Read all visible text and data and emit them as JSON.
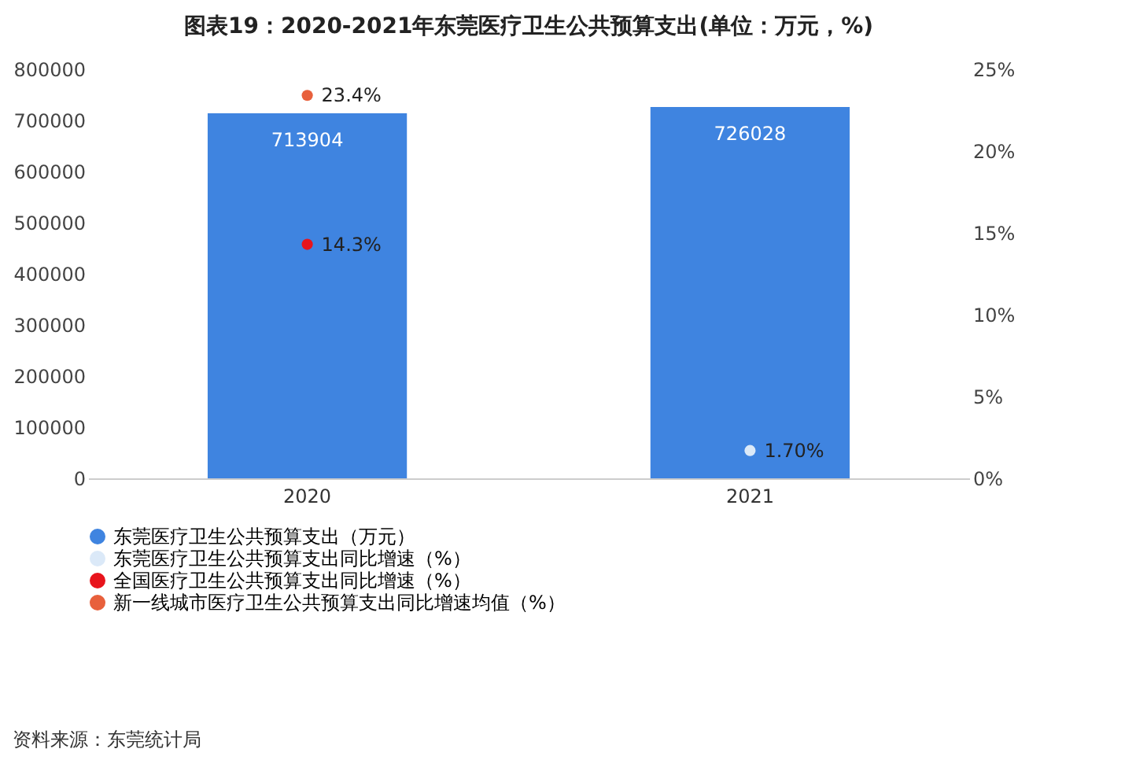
{
  "chart_data": {
    "type": "bar",
    "title": "图表19：2020-2021年东莞医疗卫生公共预算支出(单位：万元，%)",
    "categories": [
      "2020",
      "2021"
    ],
    "series": [
      {
        "name": "东莞医疗卫生公共预算支出（万元）",
        "color": "#3f84e0",
        "values": [
          713904,
          726028
        ],
        "value_labels": [
          "713904",
          "726028"
        ]
      },
      {
        "name": "东莞医疗卫生公共预算支出同比增速（%）",
        "type": "scatter",
        "axis": "y2",
        "color": "#dbe9f8",
        "values": [
          null,
          1.7
        ],
        "value_labels": [
          null,
          "1.70%"
        ]
      },
      {
        "name": "全国医疗卫生公共预算支出同比增速（%）",
        "type": "scatter",
        "axis": "y2",
        "color": "#e8141c",
        "values": [
          14.3,
          null
        ],
        "value_labels": [
          "14.3%",
          null
        ]
      },
      {
        "name": "新一线城市医疗卫生公共预算支出同比增速均值（%）",
        "type": "scatter",
        "axis": "y2",
        "color": "#e8603c",
        "values": [
          23.4,
          null
        ],
        "value_labels": [
          "23.4%",
          null
        ]
      }
    ],
    "ylim": [
      0,
      800000
    ],
    "yticks": [
      0,
      100000,
      200000,
      300000,
      400000,
      500000,
      600000,
      700000,
      800000
    ],
    "y2lim": [
      0,
      25
    ],
    "y2ticks": [
      {
        "value": 0,
        "label": "0%"
      },
      {
        "value": 5,
        "label": "5%"
      },
      {
        "value": 10,
        "label": "10%"
      },
      {
        "value": 15,
        "label": "15%"
      },
      {
        "value": 20,
        "label": "20%"
      },
      {
        "value": 25,
        "label": "25%"
      }
    ],
    "grid": false,
    "legend": "bottom",
    "marker": "circle",
    "annotations": [
      "资料来源：东莞统计局"
    ]
  }
}
